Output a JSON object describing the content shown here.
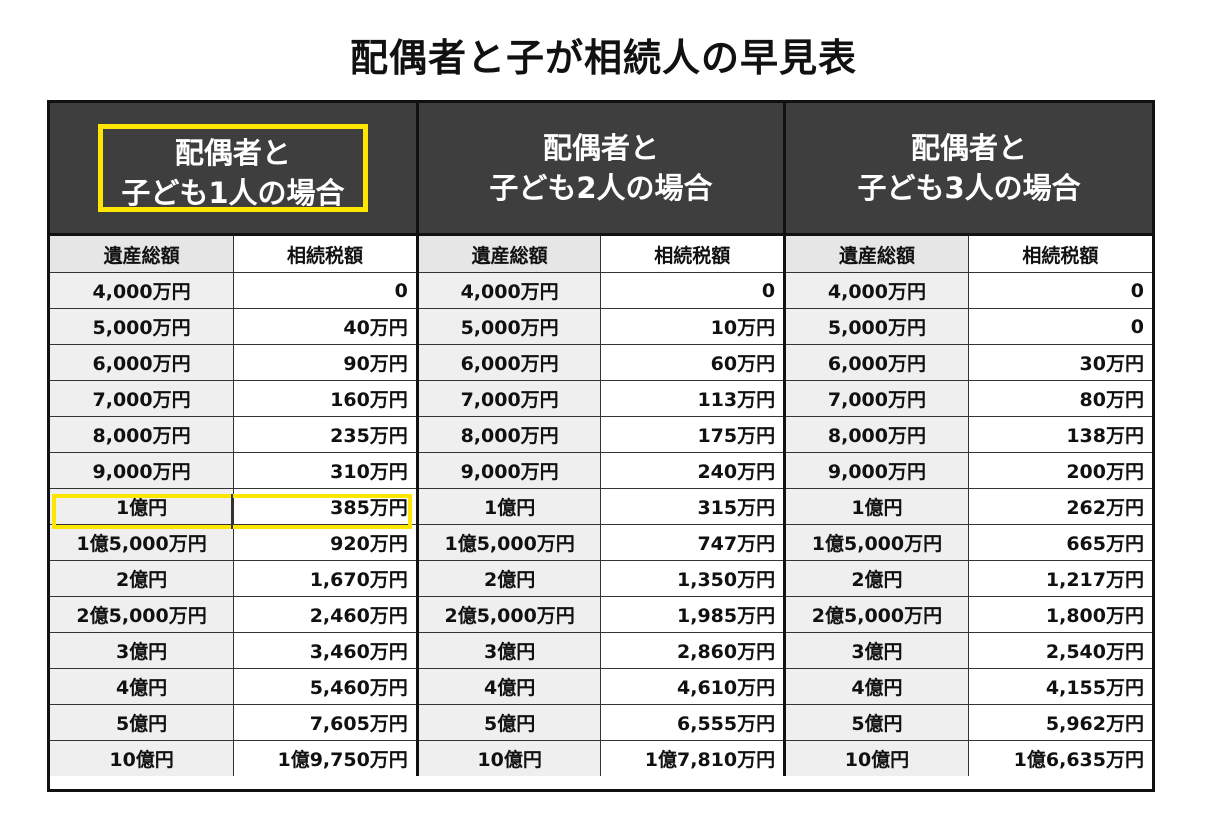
{
  "title": "配偶者と子が相続人の早見表",
  "groups": [
    {
      "line1": "配偶者と",
      "line2": "子ども1人の場合"
    },
    {
      "line1": "配偶者と",
      "line2": "子ども2人の場合"
    },
    {
      "line1": "配偶者と",
      "line2": "子ども3人の場合"
    }
  ],
  "subheaders": {
    "estate": "遺産総額",
    "tax": "相続税額"
  },
  "highlight_color": "#ffe600",
  "header_bg_color": "#3e3e3e",
  "rows": [
    {
      "estate": "4,000万円",
      "tax": [
        "0",
        "0",
        "0"
      ]
    },
    {
      "estate": "5,000万円",
      "tax": [
        "40万円",
        "10万円",
        "0"
      ]
    },
    {
      "estate": "6,000万円",
      "tax": [
        "90万円",
        "60万円",
        "30万円"
      ]
    },
    {
      "estate": "7,000万円",
      "tax": [
        "160万円",
        "113万円",
        "80万円"
      ]
    },
    {
      "estate": "8,000万円",
      "tax": [
        "235万円",
        "175万円",
        "138万円"
      ]
    },
    {
      "estate": "9,000万円",
      "tax": [
        "310万円",
        "240万円",
        "200万円"
      ]
    },
    {
      "estate": "1億円",
      "tax": [
        "385万円",
        "315万円",
        "262万円"
      ]
    },
    {
      "estate": "1億5,000万円",
      "tax": [
        "920万円",
        "747万円",
        "665万円"
      ]
    },
    {
      "estate": "2億円",
      "tax": [
        "1,670万円",
        "1,350万円",
        "1,217万円"
      ]
    },
    {
      "estate": "2億5,000万円",
      "tax": [
        "2,460万円",
        "1,985万円",
        "1,800万円"
      ]
    },
    {
      "estate": "3億円",
      "tax": [
        "3,460万円",
        "2,860万円",
        "2,540万円"
      ]
    },
    {
      "estate": "4億円",
      "tax": [
        "5,460万円",
        "4,610万円",
        "4,155万円"
      ]
    },
    {
      "estate": "5億円",
      "tax": [
        "7,605万円",
        "6,555万円",
        "5,962万円"
      ]
    },
    {
      "estate": "10億円",
      "tax": [
        "1億9,750万円",
        "1億7,810万円",
        "1億6,635万円"
      ]
    }
  ]
}
